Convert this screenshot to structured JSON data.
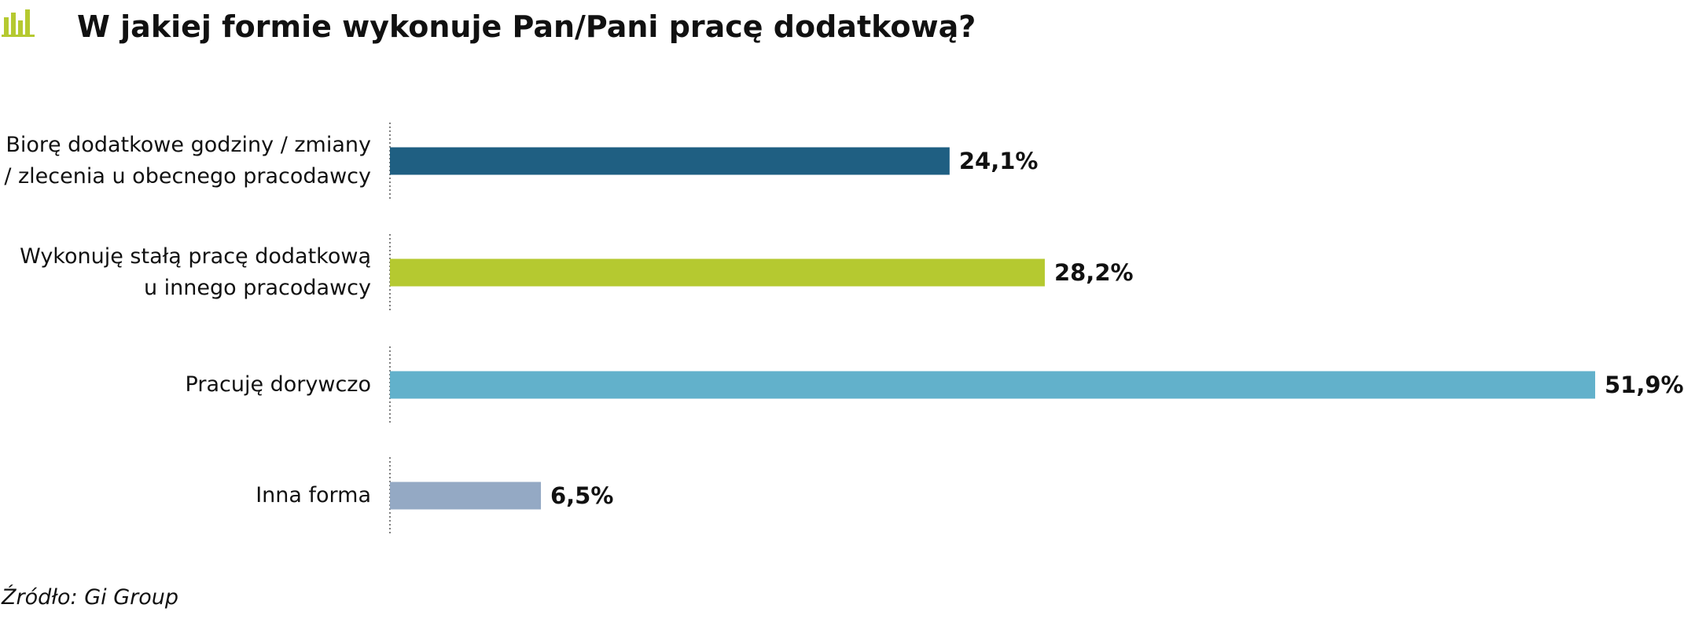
{
  "chart_data": {
    "type": "bar",
    "orientation": "horizontal",
    "title": "W jakiej formie wykonuje Pan/Pani pracę dodatkową?",
    "categories": [
      "Biorę dodatkowe godziny / zmiany\n/ zlecenia u obecnego pracodawcy",
      "Wykonuję stałą pracę dodatkową\nu innego pracodawcy",
      "Pracuję dorywczo",
      "Inna forma"
    ],
    "values": [
      24.1,
      28.2,
      51.9,
      6.5
    ],
    "value_labels": [
      "24,1%",
      "28,2%",
      "51,9%",
      "6,5%"
    ],
    "colors": [
      "#1f5f82",
      "#b5c930",
      "#62b1cb",
      "#94a9c4"
    ],
    "source": "Źródło: Gi Group"
  }
}
